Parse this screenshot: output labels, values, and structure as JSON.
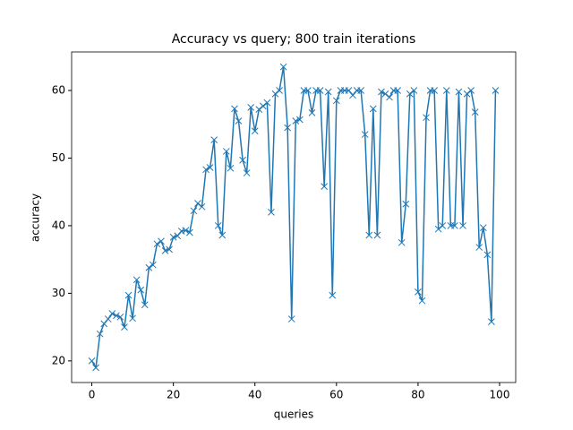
{
  "chart_data": {
    "type": "line",
    "title": "Accuracy vs query; 800 train iterations",
    "x_label": "queries",
    "y_label": "accuracy",
    "x": [
      0,
      1,
      2,
      3,
      4,
      5,
      6,
      7,
      8,
      9,
      10,
      11,
      12,
      13,
      14,
      15,
      16,
      17,
      18,
      19,
      20,
      21,
      22,
      23,
      24,
      25,
      26,
      27,
      28,
      29,
      30,
      31,
      32,
      33,
      34,
      35,
      36,
      37,
      38,
      39,
      40,
      41,
      42,
      43,
      44,
      45,
      46,
      47,
      48,
      49,
      50,
      51,
      52,
      53,
      54,
      55,
      56,
      57,
      58,
      59,
      60,
      61,
      62,
      63,
      64,
      65,
      66,
      67,
      68,
      69,
      70,
      71,
      72,
      73,
      74,
      75,
      76,
      77,
      78,
      79,
      80,
      81,
      82,
      83,
      84,
      85,
      86,
      87,
      88,
      89,
      90,
      91,
      92,
      93,
      94,
      95,
      96,
      97,
      98,
      99
    ],
    "series": [
      {
        "name": "accuracy",
        "color": "#1f77b4",
        "marker": "x",
        "values": [
          20,
          19,
          24,
          25.5,
          26.2,
          27,
          26.7,
          26.5,
          25,
          29.7,
          26.3,
          32,
          30.5,
          28.3,
          33.8,
          34.2,
          37.3,
          37.7,
          36.3,
          36.5,
          38.3,
          38.5,
          39.2,
          39.3,
          39,
          42.2,
          43.3,
          42.8,
          48.3,
          48.6,
          52.7,
          40,
          38.6,
          51,
          48.5,
          57.3,
          55.5,
          49.7,
          47.8,
          57.5,
          54,
          57.2,
          57.7,
          58.2,
          42,
          59.5,
          60,
          63.5,
          54.5,
          26.2,
          55.5,
          55.7,
          60,
          60,
          56.7,
          60,
          60,
          45.8,
          59.8,
          29.7,
          58.5,
          60,
          60,
          60,
          59.3,
          60,
          60,
          53.5,
          38.6,
          57.3,
          38.6,
          59.8,
          59.5,
          59,
          60,
          60,
          37.5,
          43.2,
          59.5,
          60,
          30.2,
          28.9,
          56,
          60,
          60,
          39.5,
          40,
          60,
          40,
          40,
          59.8,
          40,
          59.5,
          60,
          56.8,
          36.8,
          39.7,
          35.7,
          25.8,
          60
        ]
      }
    ],
    "xlim": [
      -4.95,
      103.95
    ],
    "ylim": [
      16.8,
      65.7
    ],
    "xticks": [
      0,
      20,
      40,
      60,
      80,
      100
    ],
    "yticks": [
      20,
      30,
      40,
      50,
      60
    ],
    "grid": false
  }
}
